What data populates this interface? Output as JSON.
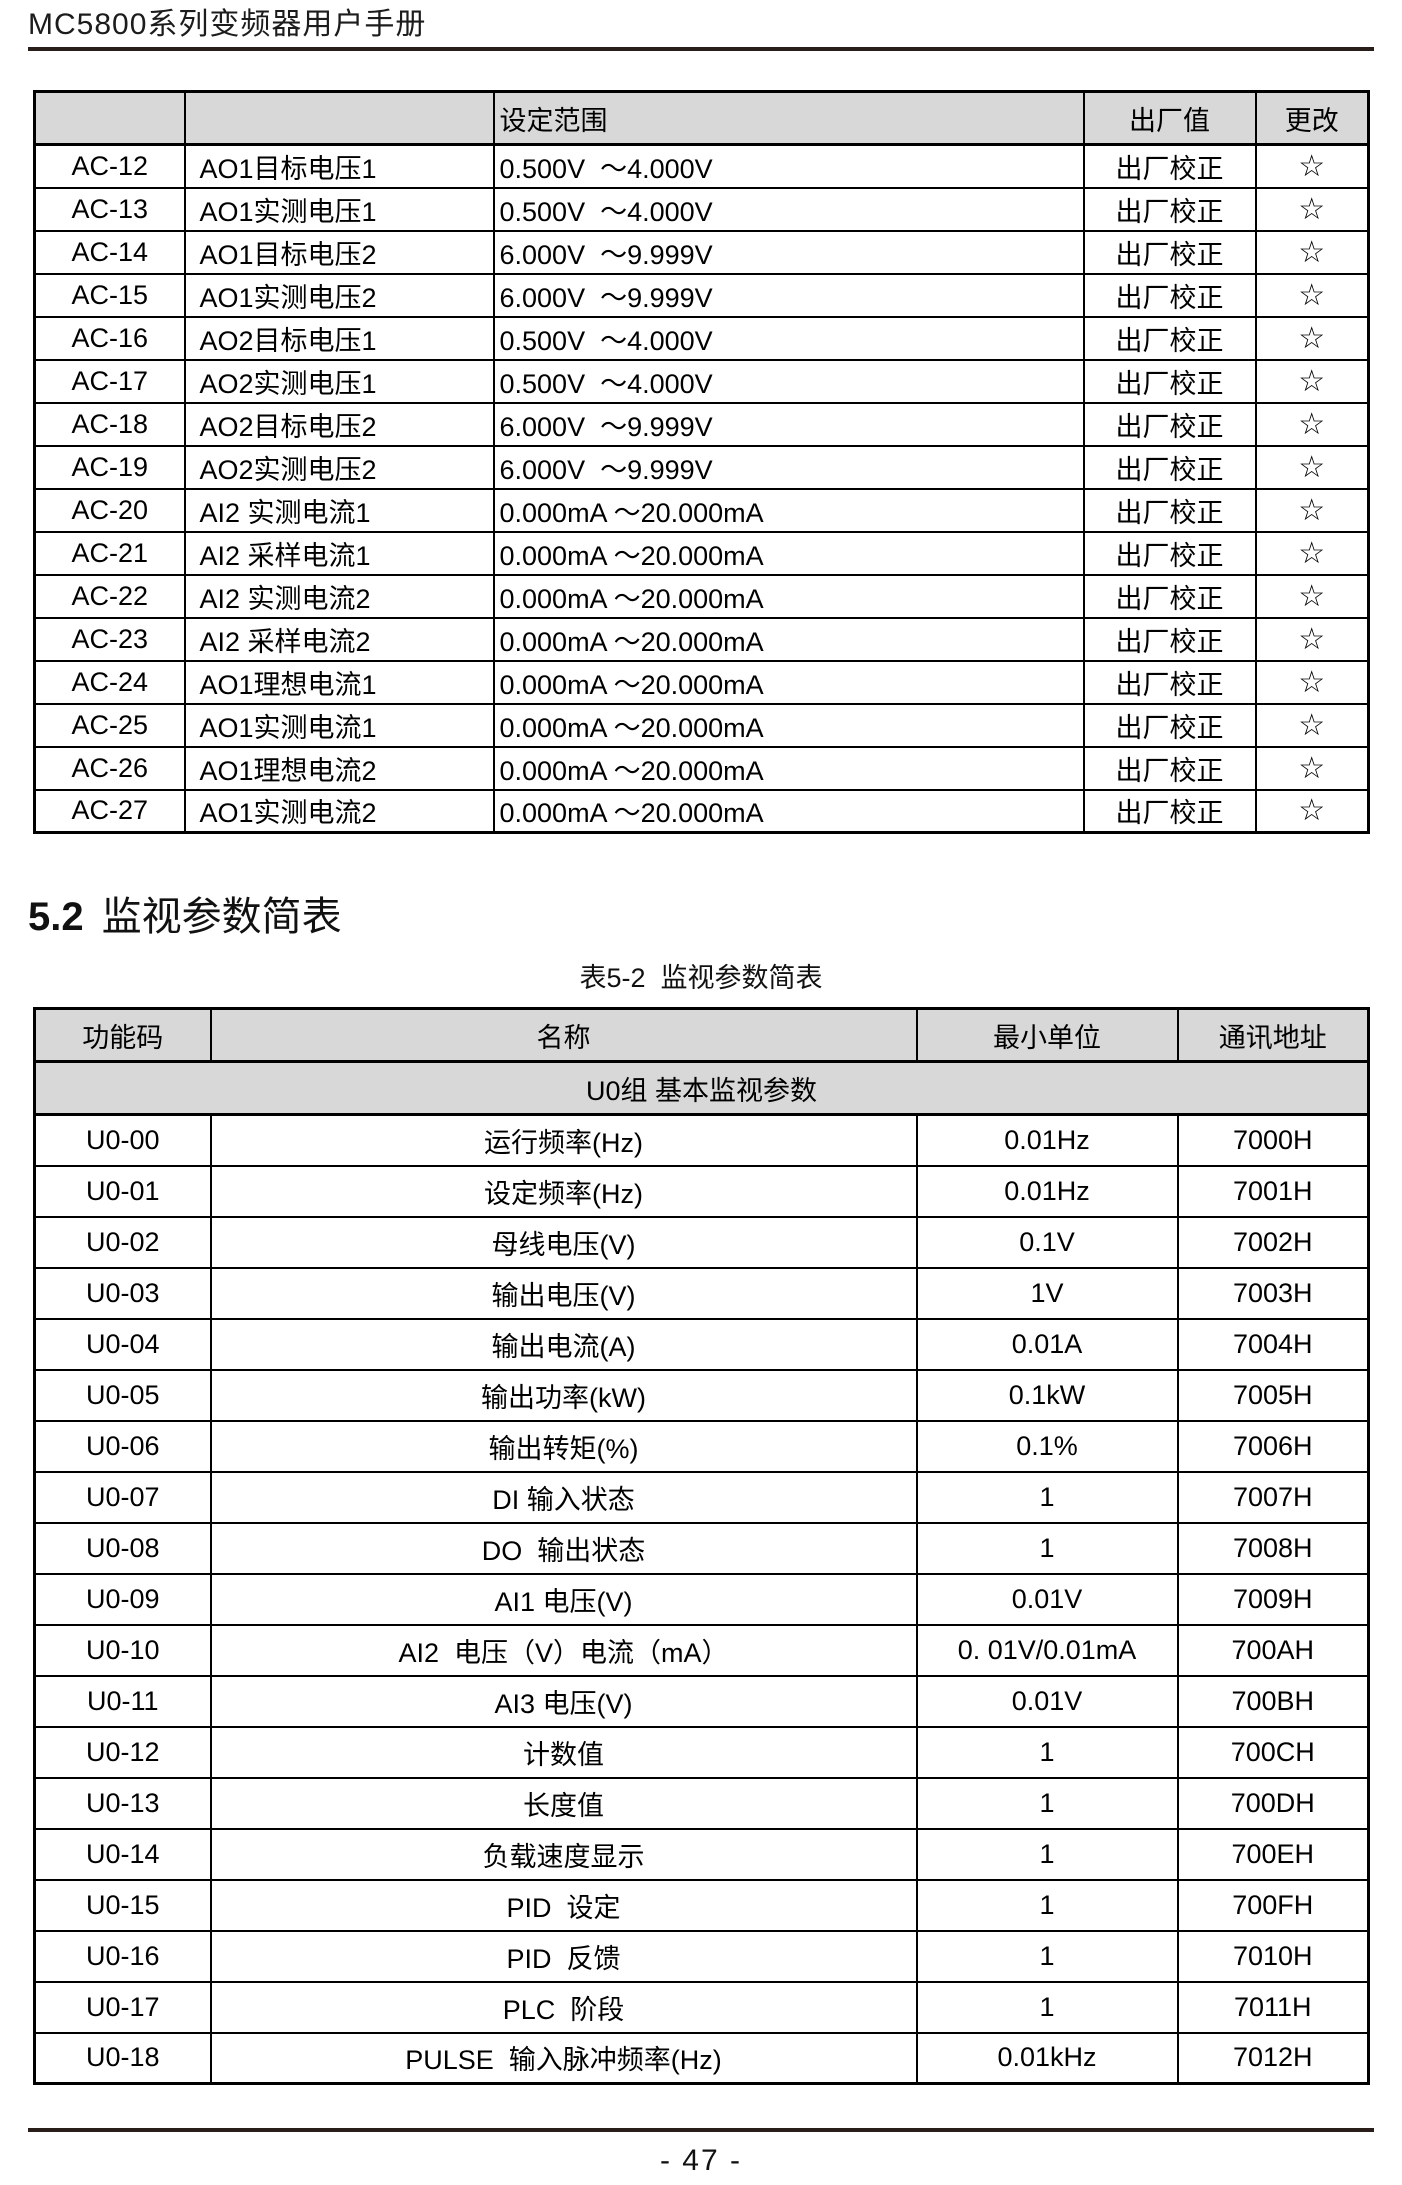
{
  "page": {
    "header_title": "MC5800系列变频器用户手册",
    "footer_page_number": "- 47 -"
  },
  "colors": {
    "table_header_gray": "#d8d8d8",
    "rule_dark": "#291e19",
    "border_black": "#000000"
  },
  "ac_table": {
    "headers": [
      "",
      "",
      "设定范围",
      "出厂值",
      "更改"
    ],
    "rows": [
      {
        "code": "AC-12",
        "name": "AO1目标电压1",
        "range": "0.500V  ～4.000V",
        "factory": "出厂校正",
        "change": "☆"
      },
      {
        "code": "AC-13",
        "name": "AO1实测电压1",
        "range": "0.500V  ～4.000V",
        "factory": "出厂校正",
        "change": "☆"
      },
      {
        "code": "AC-14",
        "name": "AO1目标电压2",
        "range": "6.000V  ～9.999V",
        "factory": "出厂校正",
        "change": "☆"
      },
      {
        "code": "AC-15",
        "name": "AO1实测电压2",
        "range": "6.000V  ～9.999V",
        "factory": "出厂校正",
        "change": "☆"
      },
      {
        "code": "AC-16",
        "name": "AO2目标电压1",
        "range": "0.500V  ～4.000V",
        "factory": "出厂校正",
        "change": "☆"
      },
      {
        "code": "AC-17",
        "name": "AO2实测电压1",
        "range": "0.500V  ～4.000V",
        "factory": "出厂校正",
        "change": "☆"
      },
      {
        "code": "AC-18",
        "name": "AO2目标电压2",
        "range": "6.000V  ～9.999V",
        "factory": "出厂校正",
        "change": "☆"
      },
      {
        "code": "AC-19",
        "name": "AO2实测电压2",
        "range": "6.000V  ～9.999V",
        "factory": "出厂校正",
        "change": "☆"
      },
      {
        "code": "AC-20",
        "name": "AI2 实测电流1",
        "range": "0.000mA ～20.000mA",
        "factory": "出厂校正",
        "change": "☆"
      },
      {
        "code": "AC-21",
        "name": "AI2 采样电流1",
        "range": "0.000mA ～20.000mA",
        "factory": "出厂校正",
        "change": "☆"
      },
      {
        "code": "AC-22",
        "name": "AI2 实测电流2",
        "range": "0.000mA ～20.000mA",
        "factory": "出厂校正",
        "change": "☆"
      },
      {
        "code": "AC-23",
        "name": "AI2 采样电流2",
        "range": "0.000mA ～20.000mA",
        "factory": "出厂校正",
        "change": "☆"
      },
      {
        "code": "AC-24",
        "name": "AO1理想电流1",
        "range": "0.000mA ～20.000mA",
        "factory": "出厂校正",
        "change": "☆"
      },
      {
        "code": "AC-25",
        "name": "AO1实测电流1",
        "range": "0.000mA ～20.000mA",
        "factory": "出厂校正",
        "change": "☆"
      },
      {
        "code": "AC-26",
        "name": "AO1理想电流2",
        "range": "0.000mA ～20.000mA",
        "factory": "出厂校正",
        "change": "☆"
      },
      {
        "code": "AC-27",
        "name": "AO1实测电流2",
        "range": "0.000mA ～20.000mA",
        "factory": "出厂校正",
        "change": "☆"
      }
    ]
  },
  "section": {
    "number": "5.2",
    "title": "监视参数简表",
    "table_caption": "表5-2  监视参数简表"
  },
  "u_table": {
    "headers": [
      "功能码",
      "名称",
      "最小单位",
      "通讯地址"
    ],
    "group_label": "U0组 基本监视参数",
    "rows": [
      {
        "code": "U0-00",
        "name": "运行频率(Hz)",
        "unit": "0.01Hz",
        "addr": "7000H"
      },
      {
        "code": "U0-01",
        "name": "设定频率(Hz)",
        "unit": "0.01Hz",
        "addr": "7001H"
      },
      {
        "code": "U0-02",
        "name": "母线电压(V)",
        "unit": "0.1V",
        "addr": "7002H"
      },
      {
        "code": "U0-03",
        "name": "输出电压(V)",
        "unit": "1V",
        "addr": "7003H"
      },
      {
        "code": "U0-04",
        "name": "输出电流(A)",
        "unit": "0.01A",
        "addr": "7004H"
      },
      {
        "code": "U0-05",
        "name": "输出功率(kW)",
        "unit": "0.1kW",
        "addr": "7005H"
      },
      {
        "code": "U0-06",
        "name": "输出转矩(%)",
        "unit": "0.1%",
        "addr": "7006H"
      },
      {
        "code": "U0-07",
        "name": "DI 输入状态",
        "unit": "1",
        "addr": "7007H"
      },
      {
        "code": "U0-08",
        "name": "DO  输出状态",
        "unit": "1",
        "addr": "7008H"
      },
      {
        "code": "U0-09",
        "name": "AI1 电压(V)",
        "unit": "0.01V",
        "addr": "7009H"
      },
      {
        "code": "U0-10",
        "name": "AI2  电压（V）电流（mA）",
        "unit": "0. 01V/0.01mA",
        "addr": "700AH"
      },
      {
        "code": "U0-11",
        "name": "AI3 电压(V)",
        "unit": "0.01V",
        "addr": "700BH"
      },
      {
        "code": "U0-12",
        "name": "计数值",
        "unit": "1",
        "addr": "700CH"
      },
      {
        "code": "U0-13",
        "name": "长度值",
        "unit": "1",
        "addr": "700DH"
      },
      {
        "code": "U0-14",
        "name": "负载速度显示",
        "unit": "1",
        "addr": "700EH"
      },
      {
        "code": "U0-15",
        "name": "PID  设定",
        "unit": "1",
        "addr": "700FH"
      },
      {
        "code": "U0-16",
        "name": "PID  反馈",
        "unit": "1",
        "addr": "7010H"
      },
      {
        "code": "U0-17",
        "name": "PLC  阶段",
        "unit": "1",
        "addr": "7011H"
      },
      {
        "code": "U0-18",
        "name": "PULSE  输入脉冲频率(Hz)",
        "unit": "0.01kHz",
        "addr": "7012H"
      }
    ]
  }
}
